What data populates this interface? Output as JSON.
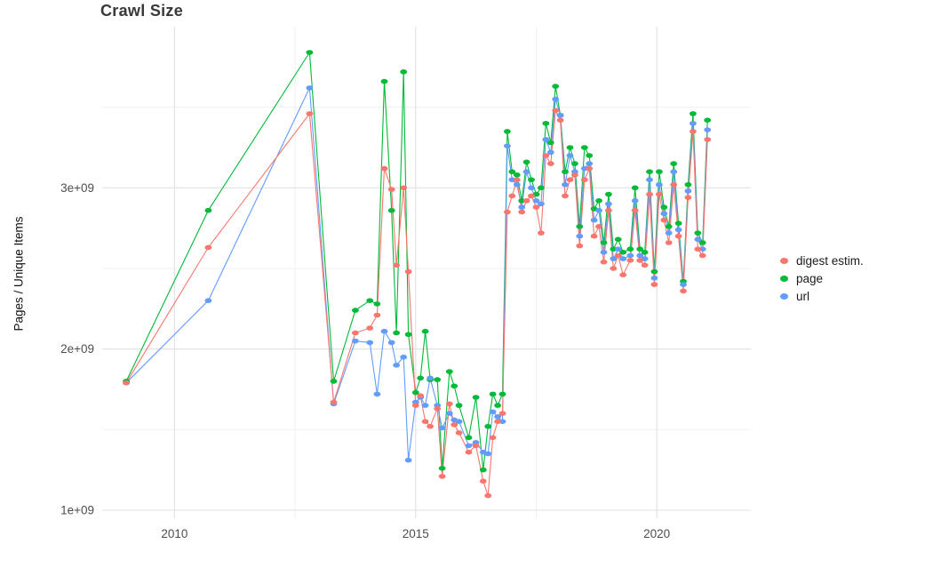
{
  "chart_data": {
    "type": "line",
    "title": "Crawl Size",
    "xlabel": "",
    "ylabel": "Pages / Unique Items",
    "value_unit": "1e9 (billions)",
    "grid": true,
    "legend_position": "right",
    "xlim": [
      2008.5,
      2021.95
    ],
    "ylim": [
      0.95,
      4.0
    ],
    "xticks": {
      "values": [
        2010,
        2015,
        2020
      ],
      "labels": [
        "2010",
        "2015",
        "2020"
      ]
    },
    "xminor": [
      2012.5,
      2017.5
    ],
    "yticks": {
      "values": [
        1,
        2,
        3
      ],
      "labels": [
        "1e+09",
        "2e+09",
        "3e+09"
      ]
    },
    "yminor": [
      1.5,
      2.5,
      3.5
    ],
    "x": [
      2009.0,
      2010.7,
      2012.8,
      2013.3,
      2013.75,
      2014.05,
      2014.2,
      2014.35,
      2014.5,
      2014.6,
      2014.75,
      2014.85,
      2015.0,
      2015.1,
      2015.2,
      2015.3,
      2015.45,
      2015.55,
      2015.7,
      2015.8,
      2015.9,
      2016.1,
      2016.25,
      2016.4,
      2016.5,
      2016.6,
      2016.7,
      2016.8,
      2016.9,
      2017.0,
      2017.1,
      2017.2,
      2017.3,
      2017.4,
      2017.5,
      2017.6,
      2017.7,
      2017.8,
      2017.9,
      2018.0,
      2018.1,
      2018.2,
      2018.3,
      2018.4,
      2018.5,
      2018.6,
      2018.7,
      2018.8,
      2018.9,
      2019.0,
      2019.1,
      2019.2,
      2019.3,
      2019.45,
      2019.55,
      2019.65,
      2019.75,
      2019.85,
      2019.95,
      2020.05,
      2020.15,
      2020.25,
      2020.35,
      2020.45,
      2020.55,
      2020.65,
      2020.75,
      2020.85,
      2020.95,
      2021.05
    ],
    "series": [
      {
        "name": "digest estim.",
        "color": "#F8766D",
        "values": [
          1.79,
          2.63,
          3.46,
          1.67,
          2.1,
          2.13,
          2.21,
          3.12,
          2.99,
          2.52,
          3.0,
          2.48,
          1.65,
          1.71,
          1.55,
          1.52,
          1.63,
          1.21,
          1.66,
          1.53,
          1.48,
          1.36,
          1.4,
          1.18,
          1.09,
          1.45,
          1.55,
          1.6,
          2.85,
          2.95,
          3.05,
          2.85,
          2.92,
          2.95,
          2.88,
          2.72,
          3.2,
          3.15,
          3.48,
          3.42,
          2.95,
          3.05,
          3.08,
          2.64,
          3.05,
          3.12,
          2.7,
          2.76,
          2.54,
          2.86,
          2.5,
          2.58,
          2.46,
          2.55,
          2.86,
          2.55,
          2.52,
          2.96,
          2.4,
          2.96,
          2.8,
          2.66,
          3.02,
          2.7,
          2.36,
          2.94,
          3.35,
          2.62,
          2.58,
          3.3
        ]
      },
      {
        "name": "page",
        "color": "#00BA38",
        "values": [
          1.8,
          2.86,
          3.84,
          1.8,
          2.24,
          2.3,
          2.28,
          3.66,
          2.86,
          2.1,
          3.72,
          2.09,
          1.73,
          1.82,
          2.11,
          1.81,
          1.81,
          1.26,
          1.86,
          1.77,
          1.65,
          1.45,
          1.7,
          1.25,
          1.52,
          1.72,
          1.65,
          1.72,
          3.35,
          3.1,
          3.08,
          2.92,
          3.16,
          3.05,
          2.96,
          3.0,
          3.4,
          3.28,
          3.63,
          3.45,
          3.1,
          3.25,
          3.15,
          2.76,
          3.25,
          3.2,
          2.87,
          2.92,
          2.66,
          2.96,
          2.62,
          2.68,
          2.6,
          2.62,
          3.0,
          2.62,
          2.6,
          3.1,
          2.48,
          3.1,
          2.88,
          2.76,
          3.15,
          2.78,
          2.42,
          3.02,
          3.46,
          2.72,
          2.66,
          3.42
        ]
      },
      {
        "name": "url",
        "color": "#619CFF",
        "values": [
          1.79,
          2.3,
          3.62,
          1.66,
          2.05,
          2.04,
          1.72,
          2.11,
          2.04,
          1.9,
          1.95,
          1.31,
          1.67,
          1.7,
          1.65,
          1.82,
          1.65,
          1.51,
          1.6,
          1.56,
          1.55,
          1.4,
          1.42,
          1.36,
          1.35,
          1.61,
          1.58,
          1.55,
          3.26,
          3.05,
          3.02,
          2.88,
          3.1,
          3.0,
          2.92,
          2.9,
          3.3,
          3.22,
          3.55,
          3.45,
          3.02,
          3.2,
          3.1,
          2.7,
          3.12,
          3.15,
          2.8,
          2.86,
          2.6,
          2.9,
          2.56,
          2.62,
          2.56,
          2.58,
          2.92,
          2.58,
          2.56,
          3.05,
          2.44,
          3.02,
          2.84,
          2.72,
          3.1,
          2.74,
          2.4,
          2.98,
          3.4,
          2.68,
          2.62,
          3.36
        ]
      }
    ]
  },
  "colors": {
    "background": "#ffffff",
    "grid_major": "#e3e3e3",
    "grid_minor": "#f1f1f1",
    "axis_text": "#4d4d4d",
    "title_text": "#383838",
    "legend_text": "#1a1a1a"
  }
}
